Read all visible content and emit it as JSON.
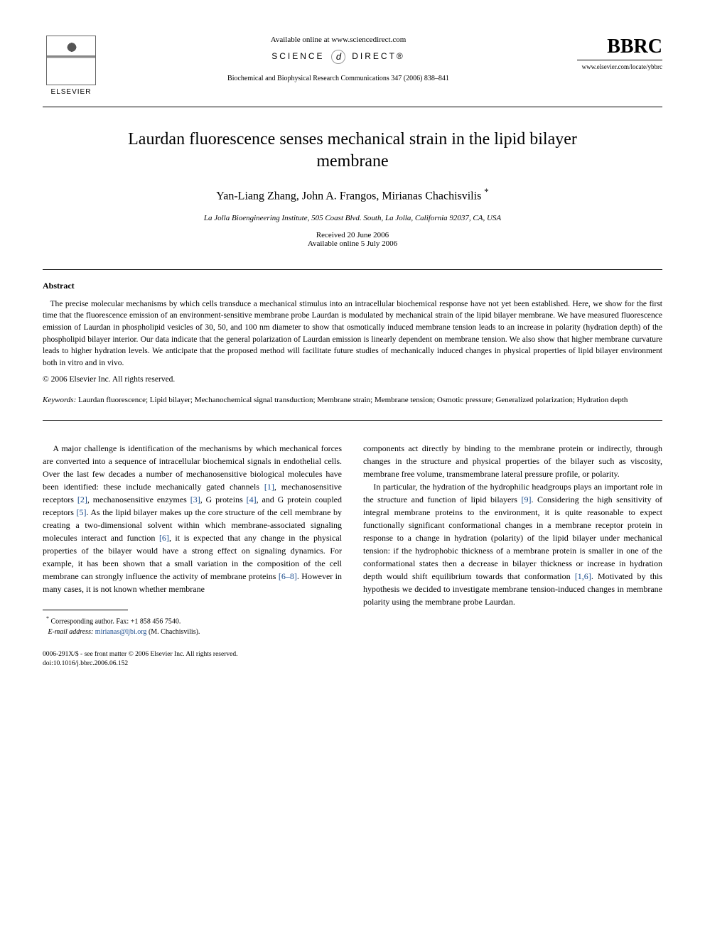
{
  "header": {
    "available_online": "Available online at www.sciencedirect.com",
    "science_direct": "SCIENCE",
    "science_direct2": "DIRECT®",
    "journal_ref": "Biochemical and Biophysical Research Communications 347 (2006) 838–841",
    "elsevier": "ELSEVIER",
    "bbrc": "BBRC",
    "journal_url": "www.elsevier.com/locate/ybbrc"
  },
  "title": "Laurdan fluorescence senses mechanical strain in the lipid bilayer membrane",
  "authors": "Yan-Liang Zhang, John A. Frangos, Mirianas Chachisvilis ",
  "corresponding_mark": "*",
  "affiliation": "La Jolla Bioengineering Institute, 505 Coast Blvd. South, La Jolla, California 92037, CA, USA",
  "dates": {
    "received": "Received 20 June 2006",
    "online": "Available online 5 July 2006"
  },
  "abstract": {
    "heading": "Abstract",
    "text": "The precise molecular mechanisms by which cells transduce a mechanical stimulus into an intracellular biochemical response have not yet been established. Here, we show for the first time that the fluorescence emission of an environment-sensitive membrane probe Laurdan is modulated by mechanical strain of the lipid bilayer membrane. We have measured fluorescence emission of Laurdan in phospholipid vesicles of 30, 50, and 100 nm diameter to show that osmotically induced membrane tension leads to an increase in polarity (hydration depth) of the phospholipid bilayer interior. Our data indicate that the general polarization of Laurdan emission is linearly dependent on membrane tension. We also show that higher membrane curvature leads to higher hydration levels. We anticipate that the proposed method will facilitate future studies of mechanically induced changes in physical properties of lipid bilayer environment both in vitro and in vivo.",
    "copyright": "© 2006 Elsevier Inc. All rights reserved."
  },
  "keywords": {
    "label": "Keywords: ",
    "text": "Laurdan fluorescence; Lipid bilayer; Mechanochemical signal transduction; Membrane strain; Membrane tension; Osmotic pressure; Generalized polarization; Hydration depth"
  },
  "body": {
    "col1_p1_a": "A major challenge is identification of the mechanisms by which mechanical forces are converted into a sequence of intracellular biochemical signals in endothelial cells. Over the last few decades a number of mechanosensitive biological molecules have been identified: these include mechanically gated channels ",
    "ref1": "[1]",
    "col1_p1_b": ", mechanosensitive receptors ",
    "ref2": "[2]",
    "col1_p1_c": ", mechanosensitive enzymes ",
    "ref3": "[3]",
    "col1_p1_d": ", G proteins ",
    "ref4": "[4]",
    "col1_p1_e": ", and G protein coupled receptors ",
    "ref5": "[5]",
    "col1_p1_f": ". As the lipid bilayer makes up the core structure of the cell membrane by creating a two-dimensional solvent within which membrane-associated signaling molecules interact and function ",
    "ref6": "[6]",
    "col1_p1_g": ", it is expected that any change in the physical properties of the bilayer would have a strong effect on signaling dynamics. For example, it has been shown that a small variation in the composition of the cell membrane can strongly influence the activity of membrane proteins ",
    "ref68": "[6–8]",
    "col1_p1_h": ". However in many cases, it is not known whether membrane",
    "col2_p1": "components act directly by binding to the membrane protein or indirectly, through changes in the structure and physical properties of the bilayer such as viscosity, membrane free volume, transmembrane lateral pressure profile, or polarity.",
    "col2_p2_a": "In particular, the hydration of the hydrophilic headgroups plays an important role in the structure and function of lipid bilayers ",
    "ref9": "[9]",
    "col2_p2_b": ". Considering the high sensitivity of integral membrane proteins to the environment, it is quite reasonable to expect functionally significant conformational changes in a membrane receptor protein in response to a change in hydration (polarity) of the lipid bilayer under mechanical tension: if the hydrophobic thickness of a membrane protein is smaller in one of the conformational states then a decrease in bilayer thickness or increase in hydration depth would shift equilibrium towards that conformation ",
    "ref16": "[1,6]",
    "col2_p2_c": ". Motivated by this hypothesis we decided to investigate membrane tension-induced changes in membrane polarity using the membrane probe Laurdan."
  },
  "footnote": {
    "corresponding": "Corresponding author. Fax: +1 858 456 7540.",
    "email_label": "E-mail address: ",
    "email": "mirianas@ljbi.org",
    "email_suffix": " (M. Chachisvilis)."
  },
  "doi": {
    "line1": "0006-291X/$ - see front matter © 2006 Elsevier Inc. All rights reserved.",
    "line2": "doi:10.1016/j.bbrc.2006.06.152"
  }
}
